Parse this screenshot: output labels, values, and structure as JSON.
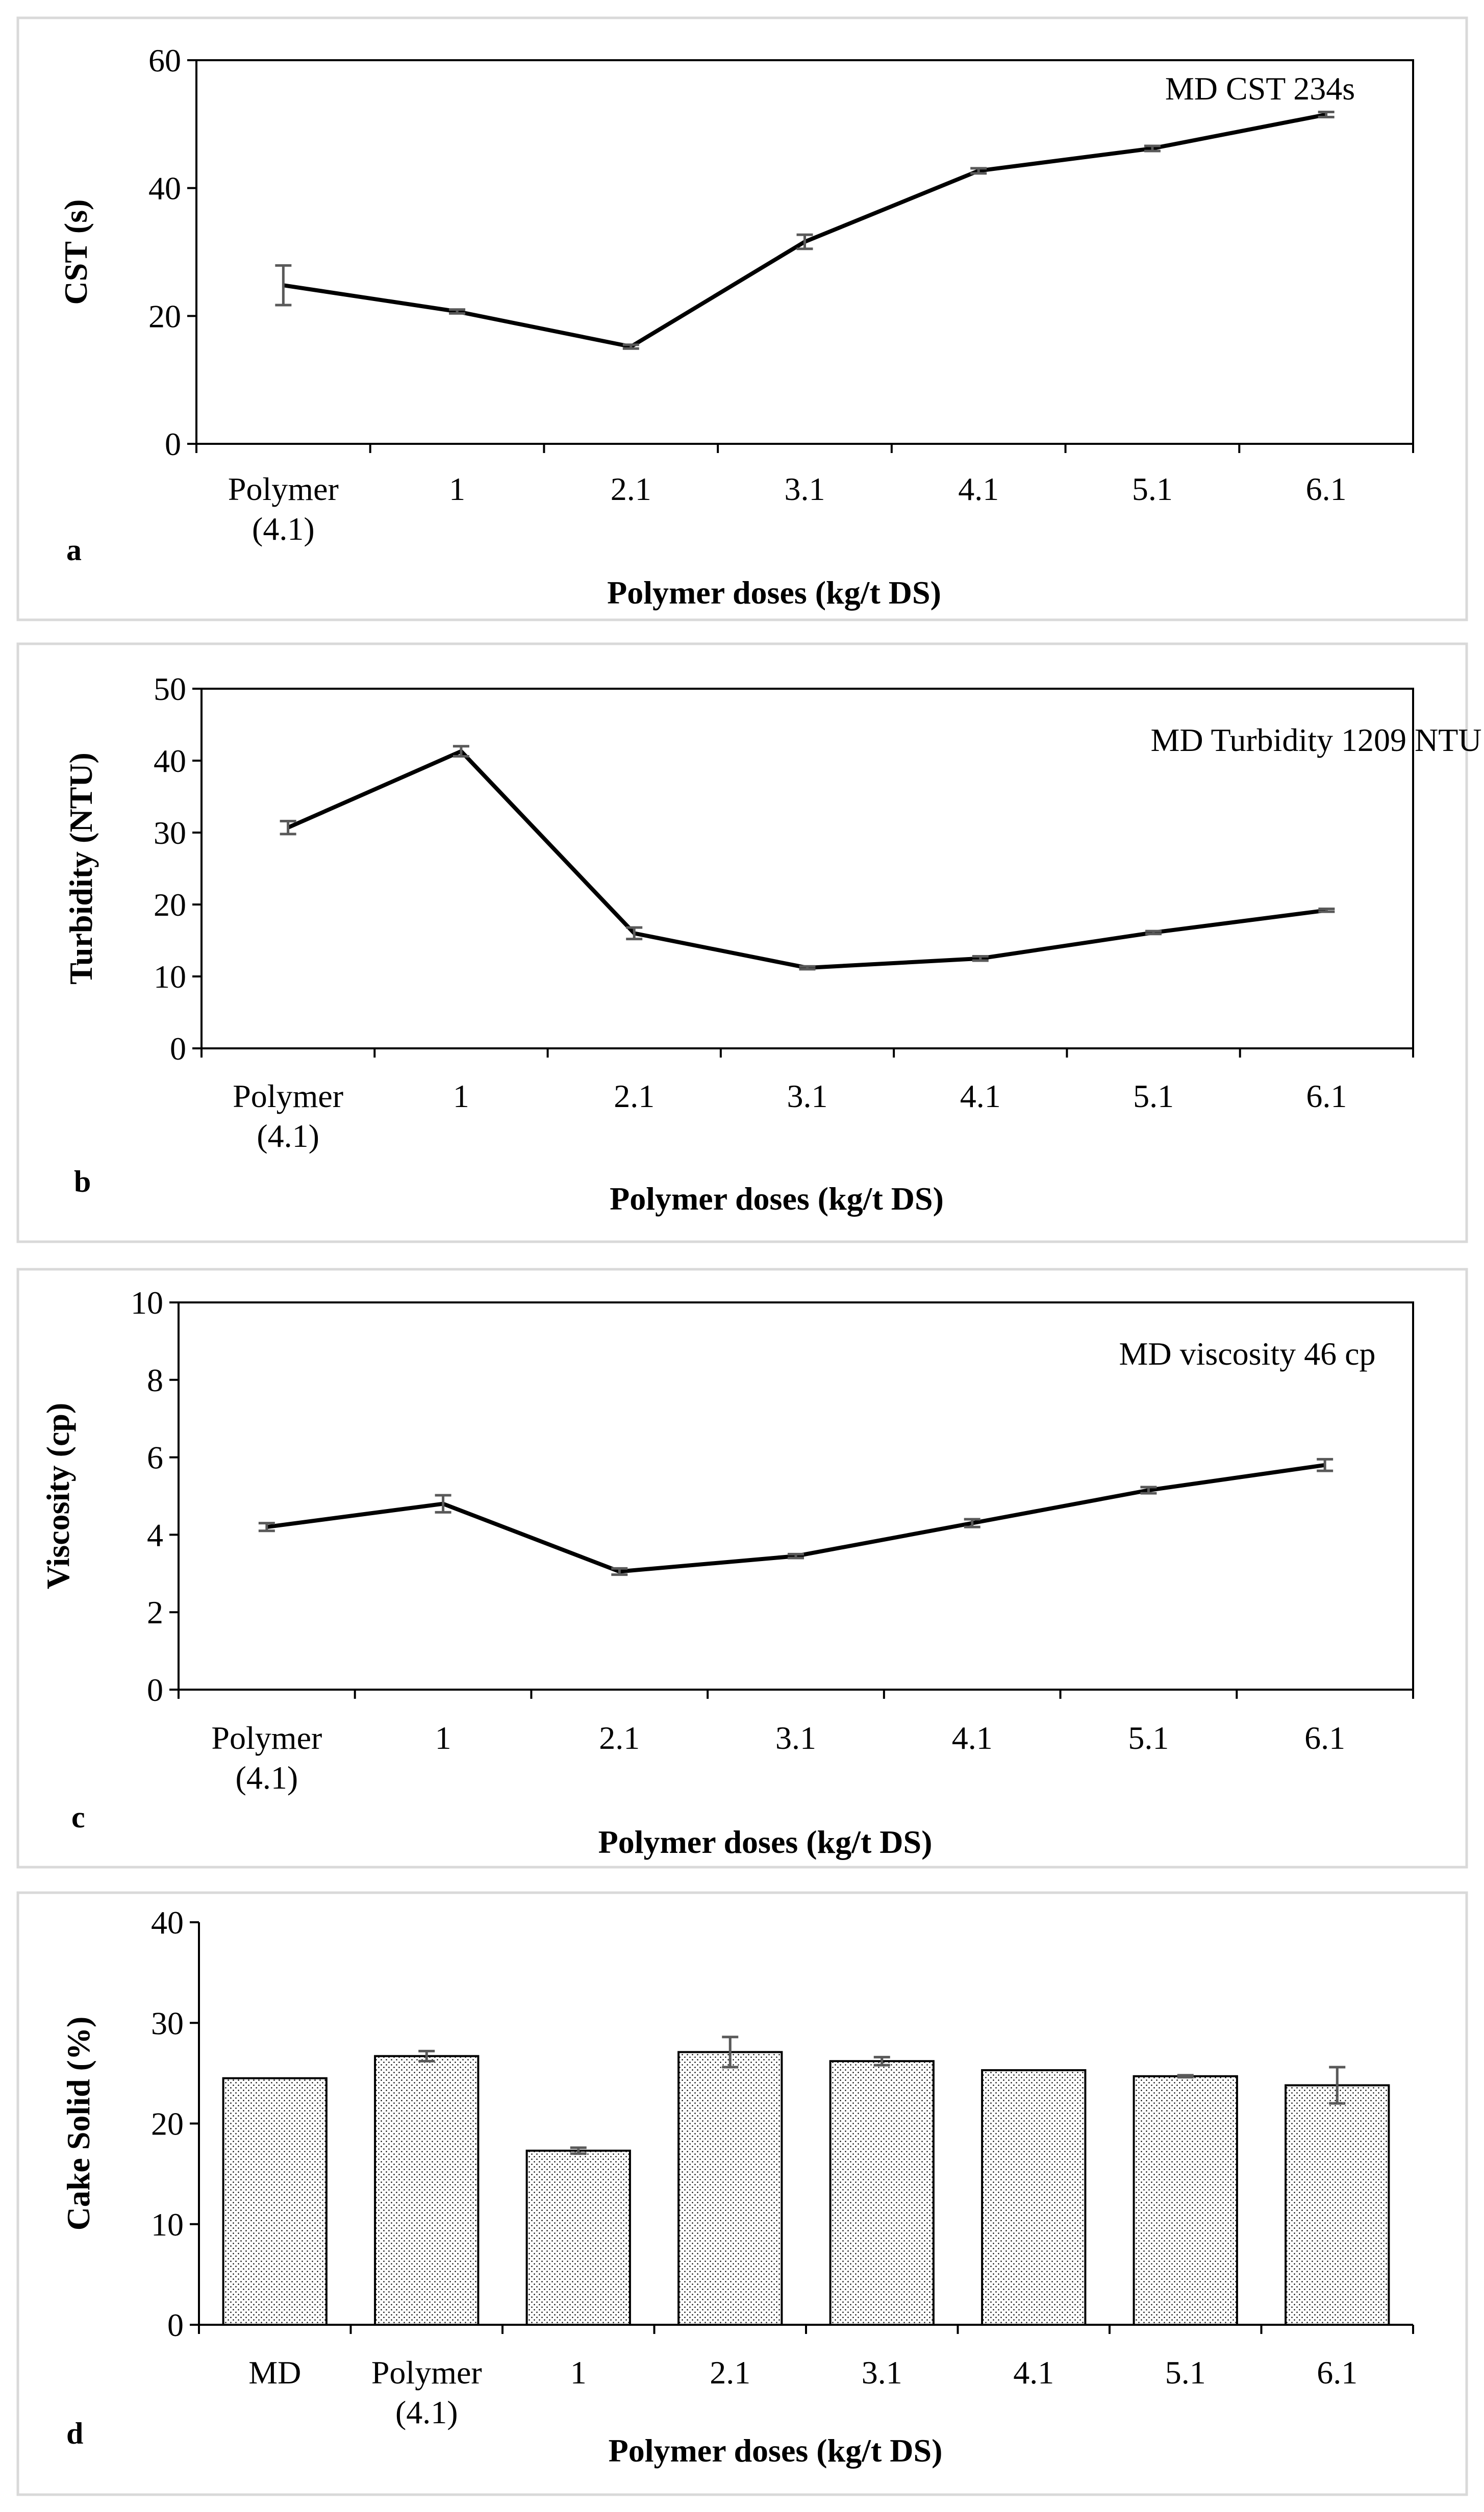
{
  "colors": {
    "frame": "#d9d9d9",
    "line": "#000000",
    "error_bar": "#595959",
    "bar_fill": "#ffffff",
    "bar_dots": "#000000"
  },
  "chart_data": [
    {
      "type": "line",
      "panel_letter": "a",
      "title": "",
      "xlabel": "Polymer doses (kg/t DS)",
      "ylabel": "CST (s)",
      "annotation": "MD CST 234s",
      "categories": [
        [
          "Polymer",
          "(4.1)"
        ],
        [
          "1"
        ],
        [
          "2.1"
        ],
        [
          "3.1"
        ],
        [
          "4.1"
        ],
        [
          "5.1"
        ],
        [
          "6.1"
        ]
      ],
      "values": [
        24.8,
        20.7,
        15.2,
        31.6,
        42.7,
        46.2,
        51.5
      ],
      "errors": [
        3.1,
        0.3,
        0.3,
        1.1,
        0.4,
        0.4,
        0.4
      ],
      "ylim": [
        0,
        60
      ],
      "yticks": [
        0,
        20,
        40,
        60
      ],
      "grid": false
    },
    {
      "type": "line",
      "panel_letter": "b",
      "title": "",
      "xlabel": "Polymer doses (kg/t DS)",
      "ylabel": "Turbidity (NTU)",
      "annotation": "MD Turbidity 1209 NTU",
      "categories": [
        [
          "Polymer",
          "(4.1)"
        ],
        [
          "1"
        ],
        [
          "2.1"
        ],
        [
          "3.1"
        ],
        [
          "4.1"
        ],
        [
          "5.1"
        ],
        [
          "6.1"
        ]
      ],
      "values": [
        30.7,
        41.3,
        16.0,
        11.2,
        12.5,
        16.1,
        19.2
      ],
      "errors": [
        0.9,
        0.7,
        0.8,
        0.2,
        0.3,
        0.2,
        0.2
      ],
      "ylim": [
        0,
        50
      ],
      "yticks": [
        0,
        10,
        20,
        30,
        40,
        50
      ],
      "grid": false
    },
    {
      "type": "line",
      "panel_letter": "c",
      "title": "",
      "xlabel": "Polymer doses (kg/t DS)",
      "ylabel": "Viscosity (cp)",
      "annotation": "MD viscosity 46 cp",
      "categories": [
        [
          "Polymer",
          "(4.1)"
        ],
        [
          "1"
        ],
        [
          "2.1"
        ],
        [
          "3.1"
        ],
        [
          "4.1"
        ],
        [
          "5.1"
        ],
        [
          "6.1"
        ]
      ],
      "values": [
        4.2,
        4.8,
        3.05,
        3.45,
        4.3,
        5.15,
        5.8
      ],
      "errors": [
        0.1,
        0.22,
        0.08,
        0.05,
        0.1,
        0.08,
        0.15
      ],
      "ylim": [
        0,
        10
      ],
      "yticks": [
        0,
        2,
        4,
        6,
        8,
        10
      ],
      "grid": false
    },
    {
      "type": "bar",
      "panel_letter": "d",
      "title": "",
      "xlabel": "Polymer doses (kg/t DS)",
      "ylabel": "Cake Solid (%)",
      "categories": [
        [
          "MD"
        ],
        [
          "Polymer",
          "(4.1)"
        ],
        [
          "1"
        ],
        [
          "2.1"
        ],
        [
          "3.1"
        ],
        [
          "4.1"
        ],
        [
          "5.1"
        ],
        [
          "6.1"
        ]
      ],
      "values": [
        24.5,
        26.7,
        17.3,
        27.1,
        26.2,
        25.3,
        24.7,
        23.8
      ],
      "errors": [
        0.0,
        0.5,
        0.3,
        1.5,
        0.4,
        0.0,
        0.1,
        1.8
      ],
      "ylim": [
        0,
        40
      ],
      "yticks": [
        0,
        10,
        20,
        30,
        40
      ],
      "grid": false
    }
  ]
}
